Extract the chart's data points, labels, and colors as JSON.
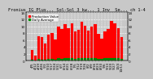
{
  "title": "Fronius IG Plus... Sol-Sol 3 kw... 1 Inv  Se... ch 1-4",
  "values": [
    3.2,
    1.5,
    7.2,
    6.8,
    5.1,
    7.5,
    8.0,
    6.2,
    9.8,
    9.2,
    10.5,
    9.5,
    10.8,
    8.5,
    9.0,
    11.2,
    10.2,
    8.8,
    9.8,
    10.5,
    7.8,
    6.5,
    8.5,
    9.2,
    11.5,
    10.8,
    9.5,
    6.8
  ],
  "small_values": [
    0.28,
    0.12,
    0.48,
    0.42,
    0.32,
    0.5,
    0.58,
    0.4,
    0.68,
    0.6,
    0.78,
    0.68,
    0.8,
    0.58,
    0.68,
    0.88,
    0.78,
    0.68,
    0.78,
    0.8,
    0.6,
    0.5,
    0.68,
    0.7,
    0.88,
    0.8,
    0.7,
    0.52
  ],
  "bar_color": "#ff0000",
  "small_bar_color": "#008800",
  "bg_color": "#c8c8c8",
  "plot_bg": "#c8c8c8",
  "grid_color": "#ffffff",
  "ylim": [
    0,
    14
  ],
  "yticks": [
    0,
    2,
    4,
    6,
    8,
    10,
    12,
    14
  ],
  "title_fontsize": 3.8,
  "tick_fontsize": 3.0,
  "legend_fontsize": 2.8,
  "legend_labels": [
    "Production Value",
    "Daily Average"
  ],
  "x_labels": [
    "4/5",
    "4/12",
    "4/19",
    "4/26",
    "5/3",
    "5/10",
    "5/17",
    "5/24",
    "5/31",
    "6/7",
    "6/14",
    "6/21",
    "6/28",
    "7/5",
    "7/12",
    "7/19",
    "7/26",
    "8/2",
    "8/9",
    "8/16",
    "8/23",
    "8/30",
    "9/6",
    "9/13",
    "9/20",
    "9/27",
    "10/4",
    "10/11"
  ]
}
